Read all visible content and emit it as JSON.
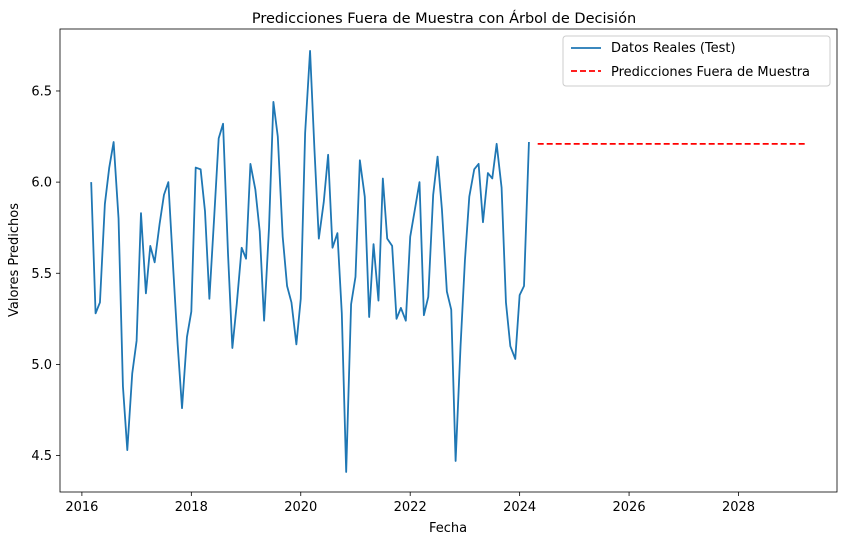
{
  "chart_data": {
    "type": "line",
    "title": "Predicciones Fuera de Muestra con Árbol de Decisión",
    "xlabel": "Fecha",
    "ylabel": "Valores Predichos",
    "xlim": [
      2015.6,
      2029.8
    ],
    "ylim": [
      4.3,
      6.84
    ],
    "x_ticks": [
      2016,
      2018,
      2020,
      2022,
      2024,
      2026,
      2028
    ],
    "x_tick_labels": [
      "2016",
      "2018",
      "2020",
      "2022",
      "2024",
      "2026",
      "2028"
    ],
    "y_ticks": [
      4.5,
      5.0,
      5.5,
      6.0,
      6.5
    ],
    "y_tick_labels": [
      "4.5",
      "5.0",
      "5.5",
      "6.0",
      "6.5"
    ],
    "legend_position": "top-right",
    "series": [
      {
        "name": "Datos Reales (Test)",
        "color": "#1f77b4",
        "style": "solid",
        "x": [
          2016.17,
          2016.25,
          2016.33,
          2016.42,
          2016.5,
          2016.58,
          2016.67,
          2016.75,
          2016.83,
          2016.92,
          2017.0,
          2017.08,
          2017.17,
          2017.25,
          2017.33,
          2017.42,
          2017.5,
          2017.58,
          2017.67,
          2017.75,
          2017.83,
          2017.92,
          2018.0,
          2018.08,
          2018.17,
          2018.25,
          2018.33,
          2018.42,
          2018.5,
          2018.58,
          2018.67,
          2018.75,
          2018.83,
          2018.92,
          2019.0,
          2019.08,
          2019.17,
          2019.25,
          2019.33,
          2019.42,
          2019.5,
          2019.58,
          2019.67,
          2019.75,
          2019.83,
          2019.92,
          2020.0,
          2020.08,
          2020.17,
          2020.25,
          2020.33,
          2020.42,
          2020.5,
          2020.58,
          2020.67,
          2020.75,
          2020.83,
          2020.92,
          2021.0,
          2021.08,
          2021.17,
          2021.25,
          2021.33,
          2021.42,
          2021.5,
          2021.58,
          2021.67,
          2021.75,
          2021.83,
          2021.92,
          2022.0,
          2022.08,
          2022.17,
          2022.25,
          2022.33,
          2022.42,
          2022.5,
          2022.58,
          2022.67,
          2022.75,
          2022.83,
          2022.92,
          2023.0,
          2023.08,
          2023.17,
          2023.25,
          2023.33,
          2023.42,
          2023.5,
          2023.58,
          2023.67,
          2023.75,
          2023.83,
          2023.92,
          2024.0,
          2024.08,
          2024.17
        ],
        "values": [
          6.0,
          5.28,
          5.34,
          5.88,
          6.08,
          6.22,
          5.8,
          4.88,
          4.53,
          4.95,
          5.13,
          5.83,
          5.39,
          5.65,
          5.56,
          5.77,
          5.93,
          6.0,
          5.52,
          5.11,
          4.76,
          5.15,
          5.29,
          6.08,
          6.07,
          5.84,
          5.36,
          5.82,
          6.24,
          6.32,
          5.61,
          5.09,
          5.33,
          5.64,
          5.58,
          6.1,
          5.96,
          5.73,
          5.24,
          5.75,
          6.44,
          6.25,
          5.7,
          5.43,
          5.34,
          5.11,
          5.36,
          6.27,
          6.72,
          6.18,
          5.69,
          5.89,
          6.15,
          5.64,
          5.72,
          5.28,
          4.41,
          5.33,
          5.48,
          6.12,
          5.92,
          5.26,
          5.66,
          5.35,
          6.02,
          5.69,
          5.65,
          5.25,
          5.31,
          5.24,
          5.7,
          5.84,
          6.0,
          5.27,
          5.37,
          5.93,
          6.14,
          5.85,
          5.4,
          5.3,
          4.47,
          5.1,
          5.57,
          5.92,
          6.07,
          6.1,
          5.78,
          6.05,
          6.02,
          6.21,
          5.97,
          5.34,
          5.1,
          5.03,
          5.38,
          5.43,
          6.22
        ]
      },
      {
        "name": "Predicciones Fuera de Muestra",
        "color": "#ff0000",
        "style": "dashed",
        "x": [
          2024.33,
          2029.25
        ],
        "values": [
          6.21,
          6.21
        ]
      }
    ]
  }
}
